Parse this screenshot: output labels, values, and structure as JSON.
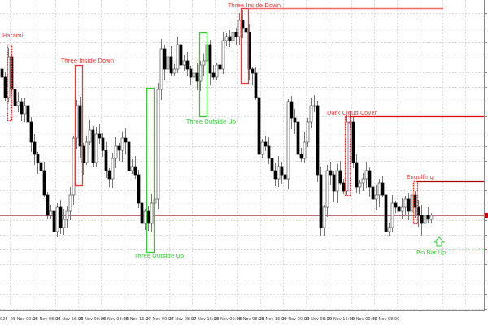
{
  "chart_data": {
    "type": "candlestick",
    "colors": {
      "bull_body": "#ffffff",
      "bear_body": "#000000",
      "wick": "#777777",
      "bearish_pattern": "#ff3333",
      "bullish_pattern": "#33cc33",
      "current_price_line": "#c07070",
      "grid": "#dddddd"
    },
    "grid": true,
    "x_tick_labels": [
      "025",
      "25 Nov 00:00",
      "25 Nov 08:00",
      "25 Nov 16:00",
      "26 Nov 00:00",
      "26 Nov 08:00",
      "26 Nov 16:00",
      "27 Nov 00:00",
      "27 Nov 08:00",
      "27 Nov 16:00",
      "28 Nov 00:00",
      "28 Nov 08:00",
      "28 Nov 16:00",
      "29 Nov 00:00",
      "29 Nov 08:00",
      "29 Nov 16:00",
      "30 Nov 00:00",
      "30 Nov 08:00"
    ],
    "ylim": [
      20,
      400
    ],
    "close": [
      305,
      280,
      330,
      290,
      270,
      275,
      260,
      270,
      250,
      225,
      210,
      200,
      190,
      160,
      135,
      140,
      115,
      145,
      120,
      130,
      140,
      160,
      230,
      270,
      220,
      200,
      225,
      240,
      200,
      235,
      230,
      215,
      190,
      180,
      205,
      220,
      215,
      230,
      225,
      190,
      195,
      185,
      150,
      125,
      140,
      125,
      150,
      155,
      290,
      340,
      315,
      330,
      310,
      315,
      345,
      320,
      325,
      315,
      305,
      310,
      300,
      320,
      325,
      345,
      310,
      305,
      320,
      315,
      350,
      355,
      350,
      360,
      355,
      375,
      365,
      360,
      315,
      310,
      280,
      210,
      225,
      220,
      205,
      190,
      180,
      195,
      185,
      180,
      275,
      255,
      250,
      210,
      205,
      225,
      250,
      270,
      270,
      185,
      120,
      145,
      190,
      185,
      165,
      190,
      175,
      165,
      250,
      250,
      200,
      170,
      175,
      180,
      190,
      170,
      155,
      160,
      175,
      160,
      115,
      120,
      150,
      145,
      140,
      145,
      155,
      140,
      160,
      145,
      135,
      125,
      135,
      130,
      135
    ],
    "current_price": 135,
    "patterns": [
      {
        "label": "Harami",
        "type": "bearish"
      },
      {
        "label": "Three Inside Down",
        "type": "bearish"
      },
      {
        "label": "Three Outside Up",
        "type": "bullish"
      },
      {
        "label": "Three Outside Up",
        "type": "bullish"
      },
      {
        "label": "Three Inside Down",
        "type": "bearish"
      },
      {
        "label": "Dark Cloud Cover",
        "type": "bearish"
      },
      {
        "label": "Engulfing",
        "type": "bearish"
      },
      {
        "label": "Pin Bar Up",
        "type": "bullish"
      }
    ]
  }
}
